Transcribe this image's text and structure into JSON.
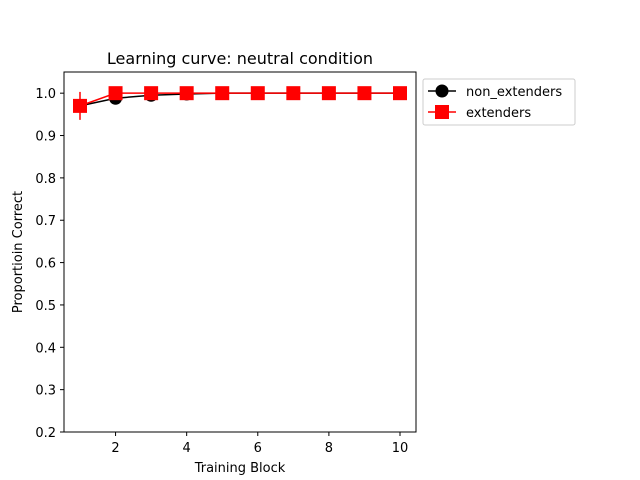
{
  "chart_data": {
    "type": "line",
    "title": "Learning curve: neutral condition",
    "xlabel": "Training Block",
    "ylabel": "Proportioin Correct",
    "xlim": [
      0.55,
      10.45
    ],
    "ylim": [
      0.2,
      1.05
    ],
    "xticks": [
      2,
      4,
      6,
      8,
      10
    ],
    "yticks": [
      0.2,
      0.3,
      0.4,
      0.5,
      0.6,
      0.7,
      0.8,
      0.9,
      1.0
    ],
    "ytick_labels": [
      "0.2",
      "0.3",
      "0.4",
      "0.5",
      "0.6",
      "0.7",
      "0.8",
      "0.9",
      "1.0"
    ],
    "grid": false,
    "legend_position": "outside-top-right",
    "x": [
      1,
      2,
      3,
      4,
      5,
      6,
      7,
      8,
      9,
      10
    ],
    "series": [
      {
        "name": "non_extenders",
        "color": "#000000",
        "marker": "circle",
        "values": [
          0.97,
          0.988,
          0.995,
          0.998,
          1.0,
          1.0,
          1.0,
          1.0,
          1.0,
          1.0
        ],
        "error": [
          0.01,
          0.005,
          0.003,
          0.002,
          0,
          0,
          0,
          0,
          0,
          0
        ]
      },
      {
        "name": "extenders",
        "color": "#ff0000",
        "marker": "square",
        "values": [
          0.97,
          1.0,
          1.0,
          1.0,
          1.0,
          1.0,
          1.0,
          1.0,
          1.0,
          1.0
        ],
        "error": [
          0.033,
          0,
          0,
          0,
          0,
          0,
          0,
          0,
          0,
          0
        ]
      }
    ]
  }
}
